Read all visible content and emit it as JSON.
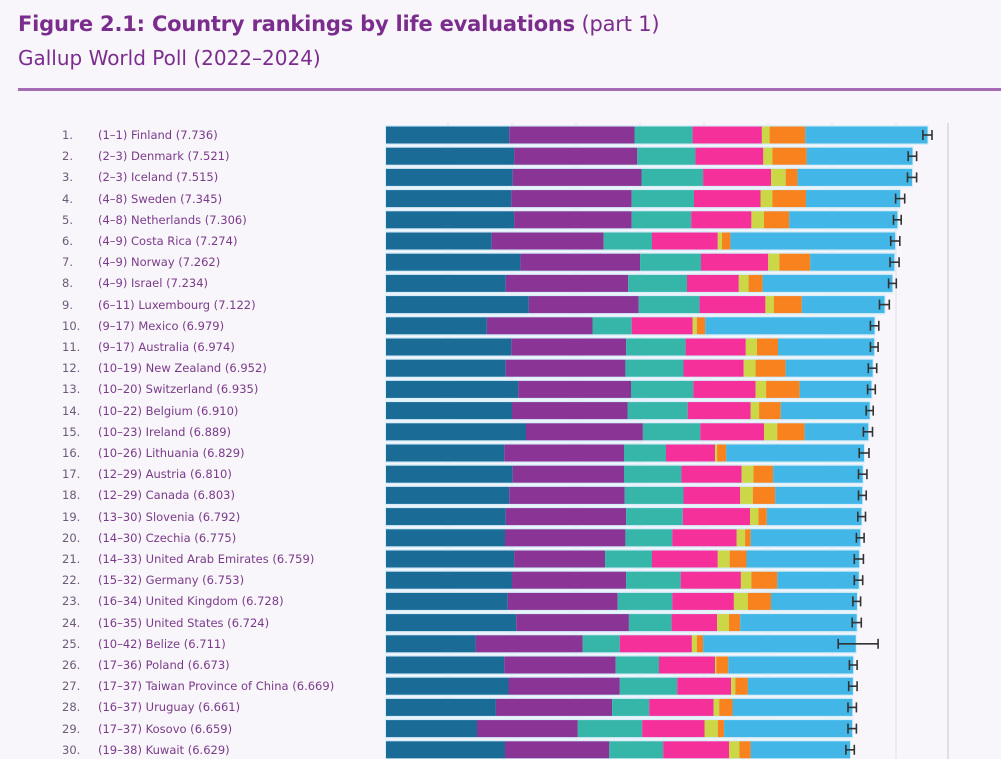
{
  "header": {
    "title_bold": "Figure 2.1: Country rankings by life evaluations",
    "title_part": "(part 1)",
    "subtitle": "Gallup World Poll (2022–2024)"
  },
  "chart_data": {
    "type": "bar",
    "orientation": "horizontal",
    "stacked": true,
    "title": "Figure 2.1: Country rankings by life evaluations (part 1)",
    "subtitle": "Gallup World Poll (2022–2024)",
    "xlim": [
      0,
      8
    ],
    "grid": true,
    "legend": "none",
    "series_colors": [
      "#1a6b96",
      "#8a3595",
      "#35b6a9",
      "#f5309a",
      "#cbd746",
      "#f7821e",
      "#43b6e8"
    ],
    "error_bar_color": "#333333",
    "rows": [
      {
        "rank": "1.",
        "range": "(1–1)",
        "country": "Finland",
        "value": 7.736,
        "segments": [
          1.76,
          1.79,
          0.83,
          0.99,
          0.11,
          0.51,
          1.746
        ],
        "ci": [
          7.67,
          7.8
        ]
      },
      {
        "rank": "2.",
        "range": "(2–3)",
        "country": "Denmark",
        "value": 7.521,
        "segments": [
          1.83,
          1.76,
          0.83,
          0.97,
          0.13,
          0.49,
          1.511
        ],
        "ci": [
          7.46,
          7.58
        ]
      },
      {
        "rank": "3.",
        "range": "(2–3)",
        "country": "Iceland",
        "value": 7.515,
        "segments": [
          1.81,
          1.84,
          0.88,
          0.97,
          0.21,
          0.17,
          1.635
        ],
        "ci": [
          7.45,
          7.58
        ]
      },
      {
        "rank": "4.",
        "range": "(4–8)",
        "country": "Sweden",
        "value": 7.345,
        "segments": [
          1.79,
          1.72,
          0.89,
          0.95,
          0.17,
          0.48,
          1.345
        ],
        "ci": [
          7.28,
          7.41
        ]
      },
      {
        "rank": "5.",
        "range": "(4–8)",
        "country": "Netherlands",
        "value": 7.306,
        "segments": [
          1.83,
          1.68,
          0.85,
          0.86,
          0.18,
          0.36,
          1.546
        ],
        "ci": [
          7.25,
          7.36
        ]
      },
      {
        "rank": "6.",
        "range": "(4–9)",
        "country": "Costa Rica",
        "value": 7.274,
        "segments": [
          1.51,
          1.6,
          0.69,
          0.94,
          0.06,
          0.12,
          2.354
        ],
        "ci": [
          7.21,
          7.34
        ]
      },
      {
        "rank": "7.",
        "range": "(4–9)",
        "country": "Norway",
        "value": 7.262,
        "segments": [
          1.92,
          1.71,
          0.87,
          0.96,
          0.16,
          0.44,
          1.202
        ],
        "ci": [
          7.2,
          7.33
        ]
      },
      {
        "rank": "8.",
        "range": "(4–9)",
        "country": "Israel",
        "value": 7.234,
        "segments": [
          1.71,
          1.75,
          0.84,
          0.74,
          0.14,
          0.2,
          1.854
        ],
        "ci": [
          7.18,
          7.29
        ]
      },
      {
        "rank": "9.",
        "range": "(6–11)",
        "country": "Luxembourg",
        "value": 7.122,
        "segments": [
          2.04,
          1.57,
          0.87,
          0.94,
          0.12,
          0.4,
          1.182
        ],
        "ci": [
          7.05,
          7.19
        ]
      },
      {
        "rank": "10.",
        "range": "(9–17)",
        "country": "Mexico",
        "value": 6.979,
        "segments": [
          1.44,
          1.51,
          0.56,
          0.87,
          0.06,
          0.12,
          2.419
        ],
        "ci": [
          6.92,
          7.04
        ]
      },
      {
        "rank": "11.",
        "range": "(9–17)",
        "country": "Australia",
        "value": 6.974,
        "segments": [
          1.79,
          1.64,
          0.85,
          0.86,
          0.16,
          0.3,
          1.374
        ],
        "ci": [
          6.92,
          7.03
        ]
      },
      {
        "rank": "12.",
        "range": "(10–19)",
        "country": "New Zealand",
        "value": 6.952,
        "segments": [
          1.71,
          1.71,
          0.83,
          0.86,
          0.17,
          0.43,
          1.242
        ],
        "ci": [
          6.89,
          7.01
        ]
      },
      {
        "rank": "13.",
        "range": "(10–20)",
        "country": "Switzerland",
        "value": 6.935,
        "segments": [
          1.89,
          1.61,
          0.89,
          0.89,
          0.15,
          0.48,
          1.025
        ],
        "ci": [
          6.88,
          6.99
        ]
      },
      {
        "rank": "14.",
        "range": "(10–22)",
        "country": "Belgium",
        "value": 6.91,
        "segments": [
          1.8,
          1.65,
          0.86,
          0.9,
          0.12,
          0.31,
          1.27
        ],
        "ci": [
          6.86,
          6.96
        ]
      },
      {
        "rank": "15.",
        "range": "(10–23)",
        "country": "Ireland",
        "value": 6.889,
        "segments": [
          2.0,
          1.67,
          0.82,
          0.91,
          0.19,
          0.39,
          0.909
        ],
        "ci": [
          6.82,
          6.95
        ]
      },
      {
        "rank": "16.",
        "range": "(10–26)",
        "country": "Lithuania",
        "value": 6.829,
        "segments": [
          1.69,
          1.71,
          0.6,
          0.7,
          0.03,
          0.13,
          1.969
        ],
        "ci": [
          6.76,
          6.9
        ]
      },
      {
        "rank": "17.",
        "range": "(12–29)",
        "country": "Austria",
        "value": 6.81,
        "segments": [
          1.81,
          1.59,
          0.82,
          0.86,
          0.17,
          0.28,
          1.28
        ],
        "ci": [
          6.75,
          6.87
        ]
      },
      {
        "rank": "18.",
        "range": "(12–29)",
        "country": "Canada",
        "value": 6.803,
        "segments": [
          1.76,
          1.65,
          0.84,
          0.81,
          0.18,
          0.32,
          1.243
        ],
        "ci": [
          6.75,
          6.86
        ]
      },
      {
        "rank": "19.",
        "range": "(13–30)",
        "country": "Slovenia",
        "value": 6.792,
        "segments": [
          1.71,
          1.72,
          0.81,
          0.96,
          0.12,
          0.12,
          1.352
        ],
        "ci": [
          6.74,
          6.85
        ]
      },
      {
        "rank": "20.",
        "range": "(14–30)",
        "country": "Czechia",
        "value": 6.775,
        "segments": [
          1.7,
          1.72,
          0.67,
          0.92,
          0.12,
          0.08,
          1.565
        ],
        "ci": [
          6.72,
          6.83
        ]
      },
      {
        "rank": "21.",
        "range": "(14–33)",
        "country": "United Arab Emirates",
        "value": 6.759,
        "segments": [
          1.83,
          1.3,
          0.67,
          0.94,
          0.17,
          0.24,
          1.609
        ],
        "ci": [
          6.69,
          6.82
        ]
      },
      {
        "rank": "22.",
        "range": "(15–32)",
        "country": "Germany",
        "value": 6.753,
        "segments": [
          1.8,
          1.63,
          0.78,
          0.86,
          0.15,
          0.37,
          1.163
        ],
        "ci": [
          6.69,
          6.81
        ]
      },
      {
        "rank": "23.",
        "range": "(16–34)",
        "country": "United Kingdom",
        "value": 6.728,
        "segments": [
          1.74,
          1.57,
          0.78,
          0.88,
          0.2,
          0.33,
          1.228
        ],
        "ci": [
          6.67,
          6.78
        ]
      },
      {
        "rank": "24.",
        "range": "(16–35)",
        "country": "United States",
        "value": 6.724,
        "segments": [
          1.86,
          1.61,
          0.61,
          0.65,
          0.17,
          0.16,
          1.664
        ],
        "ci": [
          6.66,
          6.79
        ]
      },
      {
        "rank": "25.",
        "range": "(10–42)",
        "country": "Belize",
        "value": 6.711,
        "segments": [
          1.28,
          1.53,
          0.53,
          1.03,
          0.07,
          0.09,
          2.181
        ],
        "ci": [
          6.46,
          7.03
        ]
      },
      {
        "rank": "26.",
        "range": "(17–36)",
        "country": "Poland",
        "value": 6.673,
        "segments": [
          1.69,
          1.59,
          0.62,
          0.8,
          0.02,
          0.17,
          1.783
        ],
        "ci": [
          6.62,
          6.73
        ]
      },
      {
        "rank": "27.",
        "range": "(17–37)",
        "country": "Taiwan Province of China",
        "value": 6.669,
        "segments": [
          1.75,
          1.59,
          0.82,
          0.77,
          0.06,
          0.18,
          1.499
        ],
        "ci": [
          6.61,
          6.73
        ]
      },
      {
        "rank": "28.",
        "range": "(16–37)",
        "country": "Uruguay",
        "value": 6.661,
        "segments": [
          1.57,
          1.66,
          0.53,
          0.92,
          0.08,
          0.19,
          1.711
        ],
        "ci": [
          6.6,
          6.72
        ]
      },
      {
        "rank": "29.",
        "range": "(17–37)",
        "country": "Kosovo",
        "value": 6.659,
        "segments": [
          1.3,
          1.44,
          0.92,
          0.89,
          0.19,
          0.09,
          1.829
        ],
        "ci": [
          6.6,
          6.72
        ]
      },
      {
        "rank": "30.",
        "range": "(19–38)",
        "country": "Kuwait",
        "value": 6.629,
        "segments": [
          1.7,
          1.49,
          0.77,
          0.94,
          0.15,
          0.16,
          1.419
        ],
        "ci": [
          6.57,
          6.69
        ]
      }
    ]
  }
}
